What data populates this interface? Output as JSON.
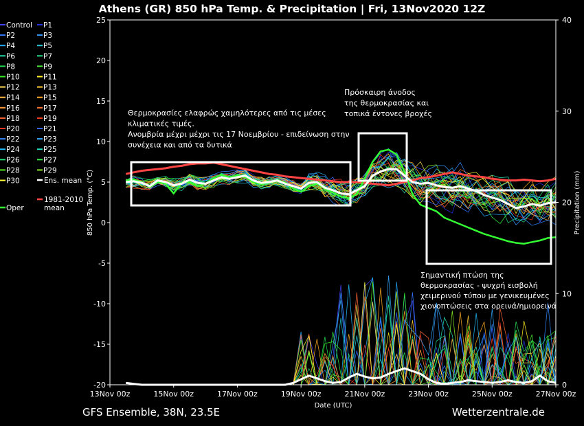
{
  "chart_data": {
    "type": "line",
    "title": "Athens  (GR)  850 hPa Temp. & Precipitation | Fri, 13Nov2020 12Z",
    "xlabel": "Date (UTC)",
    "ylabel_left": "850 hPa Temp. (°C)",
    "ylabel_right": "Precipitation (mm)",
    "ylim_left": [
      -20,
      25
    ],
    "ylim_right": [
      0,
      40
    ],
    "left_ticks": [
      "25",
      "20",
      "15",
      "10",
      "5",
      "0",
      "-5",
      "-10",
      "-15",
      "-20"
    ],
    "right_ticks": [
      "40",
      "30",
      "20",
      "10",
      "0"
    ],
    "x_ticks": [
      "13Nov 00z",
      "15Nov 00z",
      "17Nov 00z",
      "19Nov 00z",
      "21Nov 00z",
      "23Nov 00z",
      "25Nov 00z",
      "27Nov 00z"
    ],
    "grid": false,
    "legend_placement": "left-outside",
    "footer_left": "GFS Ensemble, 38N, 23.5E",
    "footer_right": "Wetterzentrale.de",
    "legend": [
      {
        "label": "Control",
        "color": "#4444ff"
      },
      {
        "label": "P1",
        "color": "#2233dd"
      },
      {
        "label": "P2",
        "color": "#3377ff"
      },
      {
        "label": "P3",
        "color": "#3399ff"
      },
      {
        "label": "P4",
        "color": "#22aaff"
      },
      {
        "label": "P5",
        "color": "#22ccdd"
      },
      {
        "label": "P6",
        "color": "#22ddaa"
      },
      {
        "label": "P7",
        "color": "#22dd88"
      },
      {
        "label": "P8",
        "color": "#22dd55"
      },
      {
        "label": "P9",
        "color": "#44ee33"
      },
      {
        "label": "P10",
        "color": "#33ee22"
      },
      {
        "label": "P11",
        "color": "#ffee22"
      },
      {
        "label": "P12",
        "color": "#ffdd55"
      },
      {
        "label": "P13",
        "color": "#ffcc33"
      },
      {
        "label": "P14",
        "color": "#ffbb44"
      },
      {
        "label": "P15",
        "color": "#ffaa22"
      },
      {
        "label": "P16",
        "color": "#ff9933"
      },
      {
        "label": "P17",
        "color": "#ff7733"
      },
      {
        "label": "P18",
        "color": "#ff6633"
      },
      {
        "label": "P19",
        "color": "#ff4422"
      },
      {
        "label": "P20",
        "color": "#ee3322"
      },
      {
        "label": "P21",
        "color": "#3366ff"
      },
      {
        "label": "P22",
        "color": "#3388ff"
      },
      {
        "label": "P23",
        "color": "#33aaff"
      },
      {
        "label": "P24",
        "color": "#22bbff"
      },
      {
        "label": "P25",
        "color": "#22ddbb"
      },
      {
        "label": "P26",
        "color": "#22dd77"
      },
      {
        "label": "P27",
        "color": "#33ee44"
      },
      {
        "label": "P28",
        "color": "#55ee22"
      },
      {
        "label": "P29",
        "color": "#88ee22"
      },
      {
        "label": "P30",
        "color": "#ffff33"
      },
      {
        "label": "Ens. mean",
        "color": "#ffffff"
      },
      {
        "label": "Oper",
        "color": "#33ff33"
      },
      {
        "label": "1981-2010 mean",
        "color": "#ff4444"
      }
    ],
    "annotations": [
      {
        "id": "cool",
        "text": "Θερμοκρασίες ελαφρώς χαμηλότερες από τις μέσες\nκλιματικές τιμές.\nΑνομβρία μέχρι μέχρι τις 17 Νοεμβρίου - επιδείνωση στην\nσυνέχεια και από τα δυτικά"
      },
      {
        "id": "rise",
        "text": "Πρόσκαιρη άνοδος\nτης θερμοκρασίας και\nτοπικά έντονες βροχές"
      },
      {
        "id": "drop",
        "text": "Σημαντική πτώση της\nθερμοκρασίας - ψυχρή εισβολή\nχειμερινού τύπου με γενικευμένες\nχιονοπτώσεις στα ορεινά/ημιορεινά"
      }
    ],
    "x_hours": [
      12,
      18,
      24,
      30,
      36,
      42,
      48,
      54,
      60,
      66,
      72,
      78,
      84,
      90,
      96,
      102,
      108,
      114,
      120,
      126,
      132,
      138,
      144,
      150,
      156,
      162,
      168,
      174,
      180,
      186,
      192,
      198,
      204,
      210,
      216,
      222,
      228,
      234,
      240,
      246,
      252,
      258,
      264,
      270,
      276,
      282,
      288,
      294,
      300,
      306,
      312,
      318,
      324,
      330,
      336
    ],
    "ens_mean": [
      5.0,
      5.1,
      4.9,
      4.5,
      5.2,
      5.0,
      4.6,
      4.8,
      5.3,
      4.9,
      4.8,
      5.2,
      5.6,
      5.4,
      5.6,
      5.8,
      5.2,
      4.9,
      5.0,
      5.2,
      4.8,
      4.5,
      4.2,
      4.9,
      5.0,
      4.3,
      4.0,
      3.6,
      3.5,
      4.0,
      4.5,
      5.8,
      6.3,
      6.6,
      6.6,
      5.8,
      5.0,
      4.8,
      4.9,
      4.6,
      4.4,
      4.3,
      4.5,
      4.2,
      3.9,
      3.4,
      3.1,
      2.8,
      2.3,
      1.8,
      2.0,
      2.3,
      2.1,
      2.4,
      2.5
    ],
    "oper": [
      5.2,
      5.3,
      5.0,
      4.4,
      5.0,
      4.8,
      3.6,
      4.9,
      5.0,
      4.5,
      4.8,
      5.5,
      5.9,
      5.6,
      5.8,
      5.6,
      5.0,
      4.7,
      5.0,
      5.3,
      4.9,
      4.2,
      3.8,
      4.5,
      4.8,
      4.2,
      3.7,
      3.2,
      3.0,
      3.5,
      5.5,
      7.5,
      8.8,
      9.0,
      8.4,
      6.3,
      3.5,
      2.2,
      1.8,
      1.4,
      0.6,
      0.2,
      -0.2,
      -0.6,
      -1.0,
      -1.4,
      -1.7,
      -2.0,
      -2.3,
      -2.5,
      -2.6,
      -2.4,
      -2.2,
      -1.9,
      -1.8
    ],
    "clim_mean": [
      6.0,
      6.2,
      6.4,
      6.5,
      6.6,
      6.7,
      6.9,
      7.0,
      7.2,
      7.3,
      7.3,
      7.4,
      7.2,
      7.0,
      6.8,
      6.6,
      6.4,
      6.2,
      6.0,
      5.9,
      5.7,
      5.6,
      5.5,
      5.4,
      5.3,
      5.2,
      5.1,
      5.0,
      5.0,
      5.0,
      4.9,
      4.8,
      4.7,
      4.6,
      4.8,
      5.0,
      5.2,
      5.5,
      5.6,
      5.8,
      6.0,
      6.2,
      6.0,
      5.8,
      5.7,
      5.6,
      5.4,
      5.3,
      5.2,
      5.2,
      5.3,
      5.2,
      5.1,
      5.2,
      5.4
    ],
    "ens_precip_mean": [
      0.2,
      0.1,
      0,
      0,
      0,
      0,
      0,
      0,
      0,
      0,
      0,
      0,
      0,
      0,
      0,
      0,
      0,
      0,
      0,
      0,
      0,
      0.2,
      0.6,
      1.0,
      0.7,
      0.4,
      0.2,
      0.3,
      0.8,
      1.2,
      0.9,
      0.7,
      0.8,
      1.2,
      1.5,
      1.8,
      1.5,
      1.2,
      0.6,
      0.2,
      0.1,
      0.2,
      0.3,
      0.5,
      0.4,
      0.3,
      0.2,
      0.3,
      0.5,
      0.3,
      0.2,
      0.4,
      1.0,
      0.4,
      0.2
    ]
  }
}
